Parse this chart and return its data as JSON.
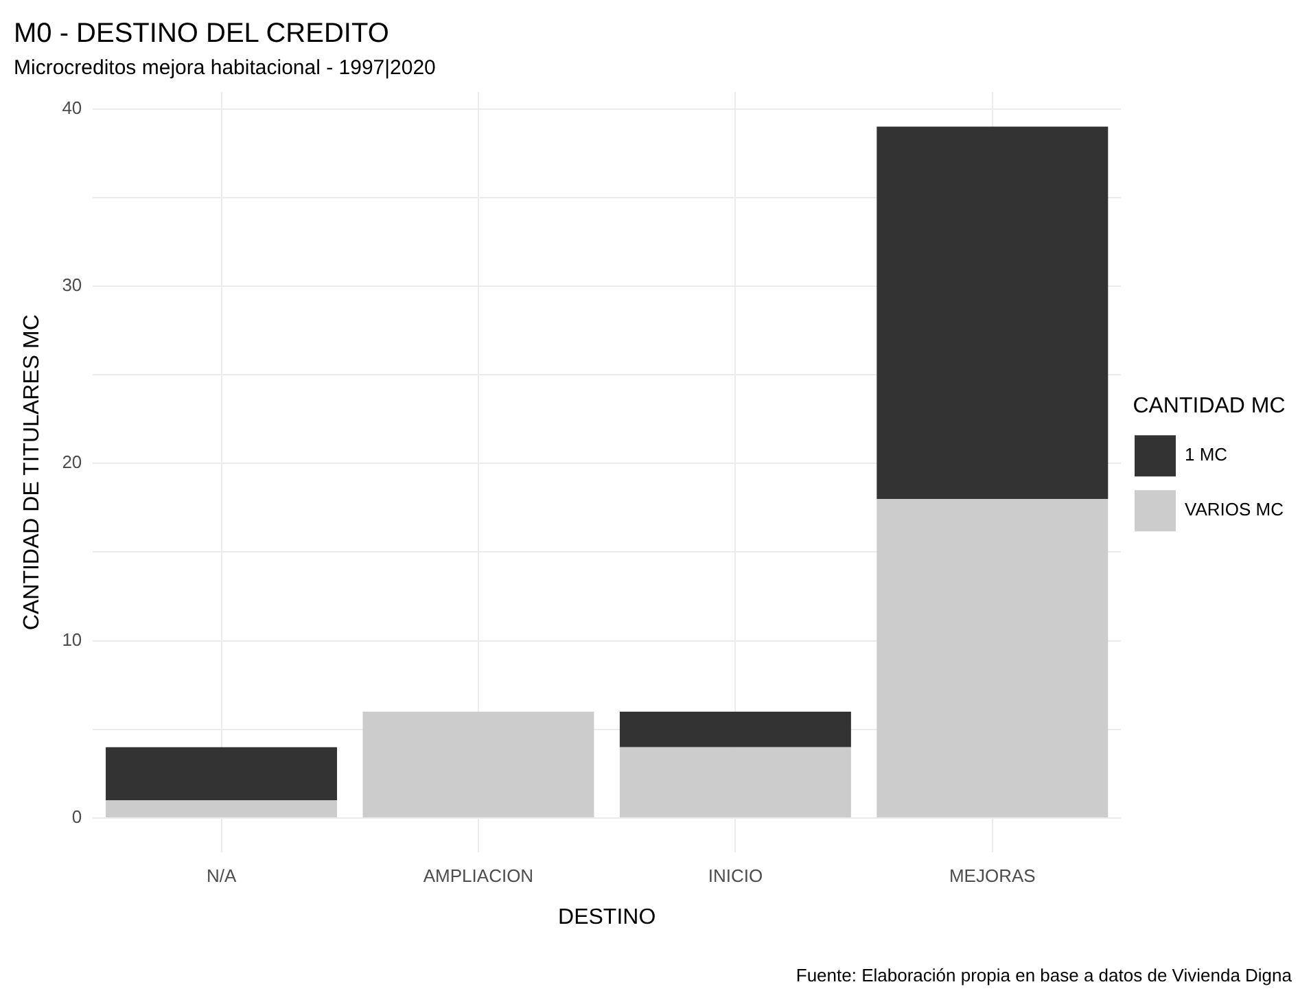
{
  "chart_data": {
    "type": "bar",
    "title": "M0 - DESTINO DEL CREDITO",
    "subtitle": "Microcreditos mejora habitacional - 1997|2020",
    "xlabel": "DESTINO",
    "ylabel": "CANTIDAD DE TITULARES MC",
    "legend_title": "CANTIDAD MC",
    "categories": [
      "N/A",
      "AMPLIACION",
      "INICIO",
      "MEJORAS"
    ],
    "series": [
      {
        "name": "VARIOS MC",
        "color": "#cccccc",
        "values": [
          1,
          6,
          4,
          18
        ]
      },
      {
        "name": "1 MC",
        "color": "#333333",
        "values": [
          3,
          0,
          2,
          21
        ]
      }
    ],
    "stacked": true,
    "ylim": [
      -1.95,
      40.95
    ],
    "yticks": [
      0,
      {
        "value": 5,
        "label": null
      },
      10,
      {
        "value": 15,
        "label": null
      },
      20,
      {
        "value": 25,
        "label": null
      },
      30,
      {
        "value": 35,
        "label": null
      },
      40
    ],
    "grid": true,
    "legend": "right",
    "annotations": [
      "Fuente: Elaboración propia en base a datos de Vivienda Digna"
    ]
  }
}
